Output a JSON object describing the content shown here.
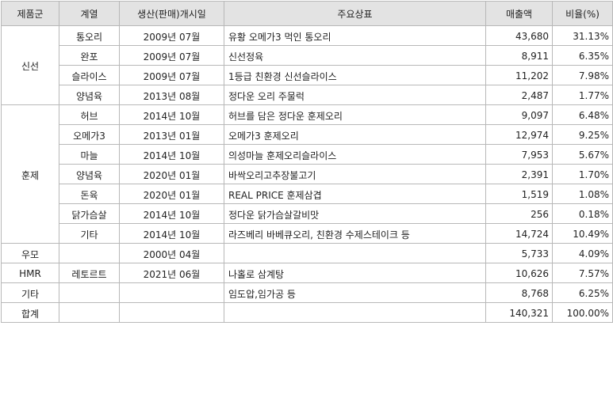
{
  "table": {
    "headers": {
      "category": "제품군",
      "line": "계열",
      "launch": "생산(판매)개시일",
      "brand": "주요상표",
      "sales": "매출액",
      "ratio": "비율(%)"
    },
    "groups": [
      {
        "category": "신선",
        "rows": [
          {
            "line": "통오리",
            "launch": "2009년 07월",
            "brand": "유황 오메가3 먹인 통오리",
            "sales": "43,680",
            "ratio": "31.13%"
          },
          {
            "line": "완포",
            "launch": "2009년 07월",
            "brand": "신선정육",
            "sales": "8,911",
            "ratio": "6.35%"
          },
          {
            "line": "슬라이스",
            "launch": "2009년 07월",
            "brand": "1등급 친환경 신선슬라이스",
            "sales": "11,202",
            "ratio": "7.98%"
          },
          {
            "line": "양념육",
            "launch": "2013년 08월",
            "brand": "정다운 오리 주물럭",
            "sales": "2,487",
            "ratio": "1.77%"
          }
        ]
      },
      {
        "category": "훈제",
        "rows": [
          {
            "line": "허브",
            "launch": "2014년 10월",
            "brand": "허브를 담은 정다운 훈제오리",
            "sales": "9,097",
            "ratio": "6.48%"
          },
          {
            "line": "오메가3",
            "launch": "2013년 01월",
            "brand": "오메가3 훈제오리",
            "sales": "12,974",
            "ratio": "9.25%"
          },
          {
            "line": "마늘",
            "launch": "2014년 10월",
            "brand": "의성마늘 훈제오리슬라이스",
            "sales": "7,953",
            "ratio": "5.67%"
          },
          {
            "line": "양념육",
            "launch": "2020년 01월",
            "brand": "바싹오리고추장불고기",
            "sales": "2,391",
            "ratio": "1.70%"
          },
          {
            "line": "돈육",
            "launch": "2020년 01월",
            "brand": "REAL PRICE 훈제삼겹",
            "sales": "1,519",
            "ratio": "1.08%"
          },
          {
            "line": "닭가슴살",
            "launch": "2014년 10월",
            "brand": "정다운 닭가슴살갈비맛",
            "sales": "256",
            "ratio": "0.18%"
          },
          {
            "line": "기타",
            "launch": "2014년 10월",
            "brand": "라즈베리 바베큐오리, 친환경 수제스테이크 등",
            "sales": "14,724",
            "ratio": "10.49%"
          }
        ]
      },
      {
        "category": "우모",
        "rows": [
          {
            "line": "",
            "launch": "2000년 04월",
            "brand": "",
            "sales": "5,733",
            "ratio": "4.09%"
          }
        ]
      },
      {
        "category": "HMR",
        "rows": [
          {
            "line": "레토르트",
            "launch": "2021년 06월",
            "brand": "나홀로 삼계탕",
            "sales": "10,626",
            "ratio": "7.57%"
          }
        ]
      },
      {
        "category": "기타",
        "rows": [
          {
            "line": "",
            "launch": "",
            "brand": "임도압,임가공 등",
            "sales": "8,768",
            "ratio": "6.25%"
          }
        ]
      }
    ],
    "total": {
      "category": "합계",
      "line": "",
      "launch": "",
      "brand": "",
      "sales": "140,321",
      "ratio": "100.00%"
    }
  }
}
